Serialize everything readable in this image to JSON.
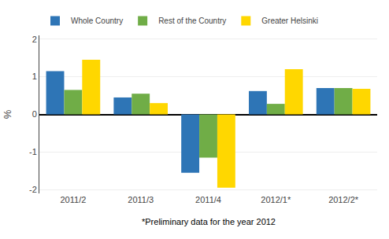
{
  "chart_data": {
    "type": "bar",
    "categories": [
      "2011/2",
      "2011/3",
      "2011/4",
      "2012/1*",
      "2012/2*"
    ],
    "series": [
      {
        "name": "Whole Country",
        "color": "#2E75B6",
        "values": [
          1.15,
          0.45,
          -1.55,
          0.62,
          0.7
        ]
      },
      {
        "name": "Rest of the Country",
        "color": "#70AD47",
        "values": [
          0.65,
          0.55,
          -1.15,
          0.28,
          0.7
        ]
      },
      {
        "name": "Greater Helsinki",
        "color": "#FFD700",
        "values": [
          1.45,
          0.3,
          -1.95,
          1.2,
          0.68
        ]
      }
    ],
    "ylabel": "%",
    "annotations": [
      "*Preliminary data for the year 2012"
    ],
    "ylim": [
      -2.1,
      2.1
    ],
    "yticks": [
      -2,
      -1,
      0,
      1,
      2
    ],
    "grid": true,
    "legend": "top"
  }
}
